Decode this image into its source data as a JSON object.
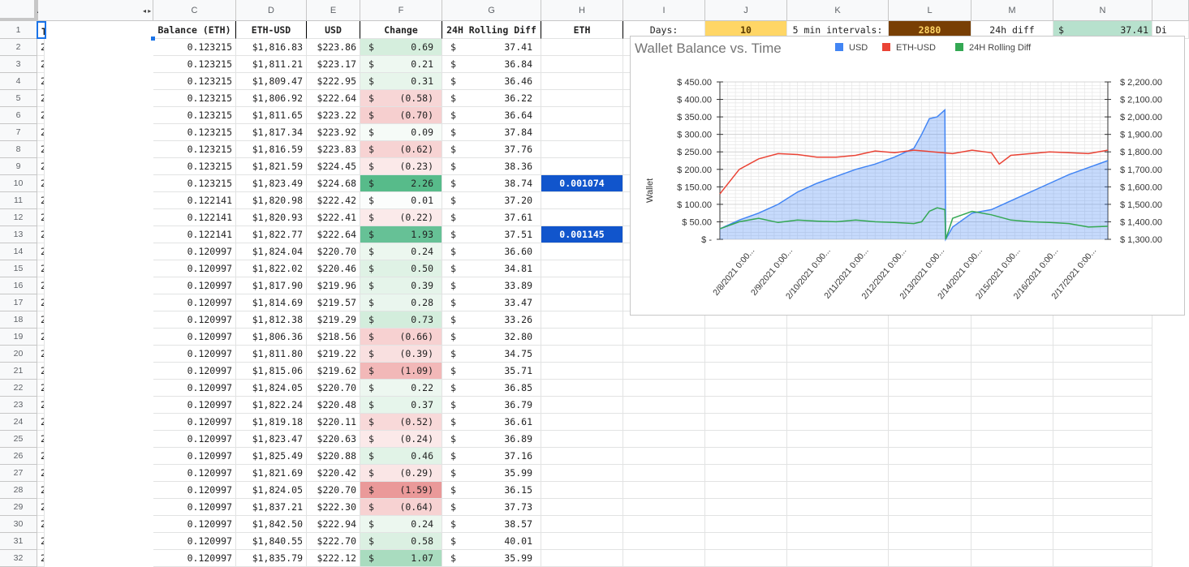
{
  "columns": [
    "A",
    "",
    "C",
    "D",
    "E",
    "F",
    "G",
    "H",
    "I",
    "J",
    "K",
    "L",
    "M",
    "N",
    ""
  ],
  "headers": [
    "Time",
    "Balance (ETH)",
    "ETH-USD",
    "USD",
    "Change",
    "24H Rolling Diff",
    "ETH"
  ],
  "summary": {
    "days_label": "Days:",
    "days_value": "10",
    "intervals_label": "5 min intervals:",
    "intervals_value": "2880",
    "diff_label": "24h diff",
    "diff_currency": "$",
    "diff_value": "37.41",
    "overflow": "Di"
  },
  "rows": [
    {
      "n": "1"
    },
    {
      "n": "2",
      "time": "2/17/2021 10:00:00",
      "bal": "0.123215",
      "ethusd": "$1,816.83",
      "usd": "$223.86",
      "chg": "0.69",
      "roll": "37.41",
      "tint": "#d5eedd"
    },
    {
      "n": "3",
      "time": "2/17/2021 9:55:00",
      "bal": "0.123215",
      "ethusd": "$1,811.21",
      "usd": "$223.17",
      "chg": "0.21",
      "roll": "36.84",
      "tint": "#eef8f1"
    },
    {
      "n": "4",
      "time": "2/17/2021 9:50:00",
      "bal": "0.123215",
      "ethusd": "$1,809.47",
      "usd": "$222.95",
      "chg": "0.31",
      "roll": "36.46",
      "tint": "#e7f5eb"
    },
    {
      "n": "5",
      "time": "2/17/2021 9:45:00",
      "bal": "0.123215",
      "ethusd": "$1,806.92",
      "usd": "$222.64",
      "chg": "(0.58)",
      "roll": "36.22",
      "tint": "#f7d6d6"
    },
    {
      "n": "6",
      "time": "2/17/2021 9:40:00",
      "bal": "0.123215",
      "ethusd": "$1,811.65",
      "usd": "$223.22",
      "chg": "(0.70)",
      "roll": "36.64",
      "tint": "#f6cfcf"
    },
    {
      "n": "7",
      "time": "2/17/2021 9:35:00",
      "bal": "0.123215",
      "ethusd": "$1,817.34",
      "usd": "$223.92",
      "chg": "0.09",
      "roll": "37.84",
      "tint": "#f6fbf7"
    },
    {
      "n": "8",
      "time": "2/17/2021 9:30:00",
      "bal": "0.123215",
      "ethusd": "$1,816.59",
      "usd": "$223.83",
      "chg": "(0.62)",
      "roll": "37.76",
      "tint": "#f7d3d3"
    },
    {
      "n": "9",
      "time": "2/17/2021 9:25:00",
      "bal": "0.123215",
      "ethusd": "$1,821.59",
      "usd": "$224.45",
      "chg": "(0.23)",
      "roll": "38.36",
      "tint": "#fbe9e9"
    },
    {
      "n": "10",
      "time": "2/17/2021 9:20:00",
      "bal": "0.123215",
      "ethusd": "$1,823.49",
      "usd": "$224.68",
      "chg": "2.26",
      "roll": "38.74",
      "tint": "#57bb8a",
      "eth": "0.001074"
    },
    {
      "n": "11",
      "time": "2/17/2021 9:15:00",
      "bal": "0.122141",
      "ethusd": "$1,820.98",
      "usd": "$222.42",
      "chg": "0.01",
      "roll": "37.20",
      "tint": "#fbfdfc"
    },
    {
      "n": "12",
      "time": "2/17/2021 9:10:00",
      "bal": "0.122141",
      "ethusd": "$1,820.93",
      "usd": "$222.41",
      "chg": "(0.22)",
      "roll": "37.61",
      "tint": "#fbeaea"
    },
    {
      "n": "13",
      "time": "2/17/2021 9:05:00",
      "bal": "0.122141",
      "ethusd": "$1,822.77",
      "usd": "$222.64",
      "chg": "1.93",
      "roll": "37.51",
      "tint": "#66c196",
      "eth": "0.001145"
    },
    {
      "n": "14",
      "time": "2/17/2021 9:00:00",
      "bal": "0.120997",
      "ethusd": "$1,824.04",
      "usd": "$220.70",
      "chg": "0.24",
      "roll": "36.60",
      "tint": "#ecf7ef"
    },
    {
      "n": "15",
      "time": "2/17/2021 8:55:00",
      "bal": "0.120997",
      "ethusd": "$1,822.02",
      "usd": "$220.46",
      "chg": "0.50",
      "roll": "34.81",
      "tint": "#dff2e5"
    },
    {
      "n": "16",
      "time": "2/17/2021 8:50:00",
      "bal": "0.120997",
      "ethusd": "$1,817.90",
      "usd": "$219.96",
      "chg": "0.39",
      "roll": "33.89",
      "tint": "#e5f4ea"
    },
    {
      "n": "17",
      "time": "2/17/2021 8:45:00",
      "bal": "0.120997",
      "ethusd": "$1,814.69",
      "usd": "$219.57",
      "chg": "0.28",
      "roll": "33.47",
      "tint": "#eaf6ee"
    },
    {
      "n": "18",
      "time": "2/17/2021 8:40:00",
      "bal": "0.120997",
      "ethusd": "$1,812.38",
      "usd": "$219.29",
      "chg": "0.73",
      "roll": "33.26",
      "tint": "#d3eddc"
    },
    {
      "n": "19",
      "time": "2/17/2021 8:35:00",
      "bal": "0.120997",
      "ethusd": "$1,806.36",
      "usd": "$218.56",
      "chg": "(0.66)",
      "roll": "32.80",
      "tint": "#f7d1d1"
    },
    {
      "n": "20",
      "time": "2/17/2021 8:30:00",
      "bal": "0.120997",
      "ethusd": "$1,811.80",
      "usd": "$219.22",
      "chg": "(0.39)",
      "roll": "34.75",
      "tint": "#f9e0e0"
    },
    {
      "n": "21",
      "time": "2/17/2021 8:25:00",
      "bal": "0.120997",
      "ethusd": "$1,815.06",
      "usd": "$219.62",
      "chg": "(1.09)",
      "roll": "35.71",
      "tint": "#f2b8b8"
    },
    {
      "n": "22",
      "time": "2/17/2021 8:20:00",
      "bal": "0.120997",
      "ethusd": "$1,824.05",
      "usd": "$220.70",
      "chg": "0.22",
      "roll": "36.85",
      "tint": "#edf7f0"
    },
    {
      "n": "23",
      "time": "2/17/2021 8:15:00",
      "bal": "0.120997",
      "ethusd": "$1,822.24",
      "usd": "$220.48",
      "chg": "0.37",
      "roll": "36.79",
      "tint": "#e6f5eb"
    },
    {
      "n": "24",
      "time": "2/17/2021 8:10:00",
      "bal": "0.120997",
      "ethusd": "$1,819.18",
      "usd": "$220.11",
      "chg": "(0.52)",
      "roll": "36.61",
      "tint": "#f8d9d9"
    },
    {
      "n": "25",
      "time": "2/17/2021 8:05:00",
      "bal": "0.120997",
      "ethusd": "$1,823.47",
      "usd": "$220.63",
      "chg": "(0.24)",
      "roll": "36.89",
      "tint": "#fbe9e9"
    },
    {
      "n": "26",
      "time": "2/17/2021 8:00:00",
      "bal": "0.120997",
      "ethusd": "$1,825.49",
      "usd": "$220.88",
      "chg": "0.46",
      "roll": "37.16",
      "tint": "#e1f3e7"
    },
    {
      "n": "27",
      "time": "2/17/2021 7:55:00",
      "bal": "0.120997",
      "ethusd": "$1,821.69",
      "usd": "$220.42",
      "chg": "(0.29)",
      "roll": "35.99",
      "tint": "#fae6e6"
    },
    {
      "n": "28",
      "time": "2/17/2021 7:50:00",
      "bal": "0.120997",
      "ethusd": "$1,824.05",
      "usd": "$220.70",
      "chg": "(1.59)",
      "roll": "36.15",
      "tint": "#ea9999"
    },
    {
      "n": "29",
      "time": "2/17/2021 7:45:00",
      "bal": "0.120997",
      "ethusd": "$1,837.21",
      "usd": "$222.30",
      "chg": "(0.64)",
      "roll": "37.73",
      "tint": "#f7d2d2"
    },
    {
      "n": "30",
      "time": "2/17/2021 7:40:00",
      "bal": "0.120997",
      "ethusd": "$1,842.50",
      "usd": "$222.94",
      "chg": "0.24",
      "roll": "38.57",
      "tint": "#ecf7ef"
    },
    {
      "n": "31",
      "time": "2/17/2021 7:35:00",
      "bal": "0.120997",
      "ethusd": "$1,840.55",
      "usd": "$222.70",
      "chg": "0.58",
      "roll": "40.01",
      "tint": "#dbf0e2"
    },
    {
      "n": "32",
      "time": "2/17/2021 7:30:00",
      "bal": "0.120997",
      "ethusd": "$1,835.79",
      "usd": "$222.12",
      "chg": "1.07",
      "roll": "35.99",
      "tint": "#a9dcbf"
    }
  ],
  "colors": {
    "accent": "#1155cc",
    "days_bg": "#ffd666",
    "intervals_bg": "#783f04",
    "intervals_fg": "#ffd666",
    "diff_bg": "#b7e1cd",
    "selection": "#1a73e8"
  },
  "chart_data": {
    "type": "line",
    "title": "Wallet Balance vs. Time",
    "ylabel": "Wallet",
    "legend_position": "top",
    "series": [
      {
        "name": "USD",
        "color": "#4285f4",
        "axis": "left",
        "area": true,
        "x": [
          0,
          0.5,
          1,
          1.5,
          2,
          2.5,
          3,
          3.5,
          4,
          4.5,
          5,
          5.2,
          5.4,
          5.6,
          5.8,
          5.82,
          6,
          6.5,
          7,
          7.5,
          8,
          8.5,
          9,
          9.5,
          10
        ],
        "values": [
          30,
          55,
          75,
          100,
          135,
          160,
          180,
          200,
          215,
          235,
          260,
          300,
          345,
          350,
          370,
          0,
          35,
          75,
          85,
          110,
          135,
          160,
          185,
          205,
          225
        ]
      },
      {
        "name": "ETH-USD",
        "color": "#ea4335",
        "axis": "right",
        "x": [
          0,
          0.5,
          1,
          1.5,
          2,
          2.5,
          3,
          3.5,
          4,
          4.5,
          5,
          5.5,
          6,
          6.5,
          7,
          7.2,
          7.5,
          8,
          8.5,
          9,
          9.5,
          10
        ],
        "values": [
          1560,
          1700,
          1760,
          1790,
          1785,
          1770,
          1770,
          1780,
          1805,
          1795,
          1810,
          1800,
          1790,
          1810,
          1795,
          1730,
          1780,
          1790,
          1800,
          1795,
          1790,
          1810
        ]
      },
      {
        "name": "24H Rolling Diff",
        "color": "#34a853",
        "axis": "left",
        "x": [
          0,
          0.5,
          1,
          1.5,
          2,
          2.5,
          3,
          3.5,
          4,
          4.5,
          5,
          5.2,
          5.4,
          5.6,
          5.8,
          5.82,
          6,
          6.5,
          7,
          7.5,
          8,
          8.5,
          9,
          9.5,
          10
        ],
        "values": [
          30,
          50,
          60,
          48,
          55,
          52,
          50,
          55,
          50,
          48,
          45,
          50,
          80,
          90,
          85,
          0,
          60,
          80,
          70,
          55,
          50,
          48,
          45,
          35,
          37
        ]
      }
    ],
    "x_tick_labels": [
      "2/8/2021 0:00...",
      "2/9/2021 0:00...",
      "2/10/2021 0:00...",
      "2/11/2021 0:00...",
      "2/12/2021 0:00...",
      "2/13/2021 0:00...",
      "2/14/2021 0:00...",
      "2/15/2021 0:00...",
      "2/16/2021 0:00...",
      "2/17/2021 0:00..."
    ],
    "ylim_left": [
      0,
      450
    ],
    "yticks_left": [
      "$ -",
      "$ 50.00",
      "$ 100.00",
      "$ 150.00",
      "$ 200.00",
      "$ 250.00",
      "$ 300.00",
      "$ 350.00",
      "$ 400.00",
      "$ 450.00"
    ],
    "ylim_right": [
      1300,
      2200
    ],
    "yticks_right": [
      "$ 1,300.00",
      "$ 1,400.00",
      "$ 1,500.00",
      "$ 1,600.00",
      "$ 1,700.00",
      "$ 1,800.00",
      "$ 1,900.00",
      "$ 2,000.00",
      "$ 2,100.00",
      "$ 2,200.00"
    ],
    "xlim": [
      0,
      10
    ],
    "grid": true
  }
}
